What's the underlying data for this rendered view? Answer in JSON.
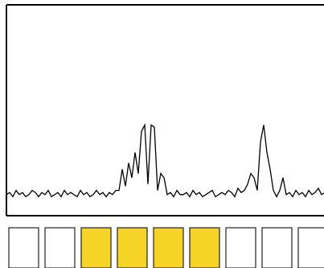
{
  "chart_data": {
    "type": "line",
    "color": "#000000",
    "xlim": [
      0,
      99
    ],
    "ylim": [
      0,
      100
    ],
    "values": [
      10,
      11,
      9,
      12,
      10,
      11,
      9,
      10,
      12,
      11,
      9,
      11,
      10,
      12,
      9,
      10,
      11,
      9,
      12,
      10,
      11,
      10,
      9,
      12,
      10,
      11,
      9,
      10,
      12,
      10,
      11,
      9,
      11,
      10,
      12,
      12,
      22,
      14,
      25,
      18,
      30,
      20,
      40,
      43,
      15,
      43,
      42,
      12,
      20,
      18,
      10,
      11,
      9,
      12,
      10,
      10,
      11,
      9,
      12,
      10,
      11,
      9,
      10,
      11,
      12,
      9,
      10,
      11,
      10,
      12,
      11,
      9,
      13,
      11,
      12,
      15,
      20,
      18,
      12,
      35,
      43,
      30,
      22,
      12,
      9,
      12,
      18,
      10,
      11,
      9,
      12,
      10,
      11,
      9,
      12,
      10,
      11,
      13,
      10,
      11
    ],
    "cells": [
      false,
      false,
      true,
      true,
      true,
      true,
      false,
      false,
      false
    ],
    "highlight_color": "#f5d327"
  }
}
